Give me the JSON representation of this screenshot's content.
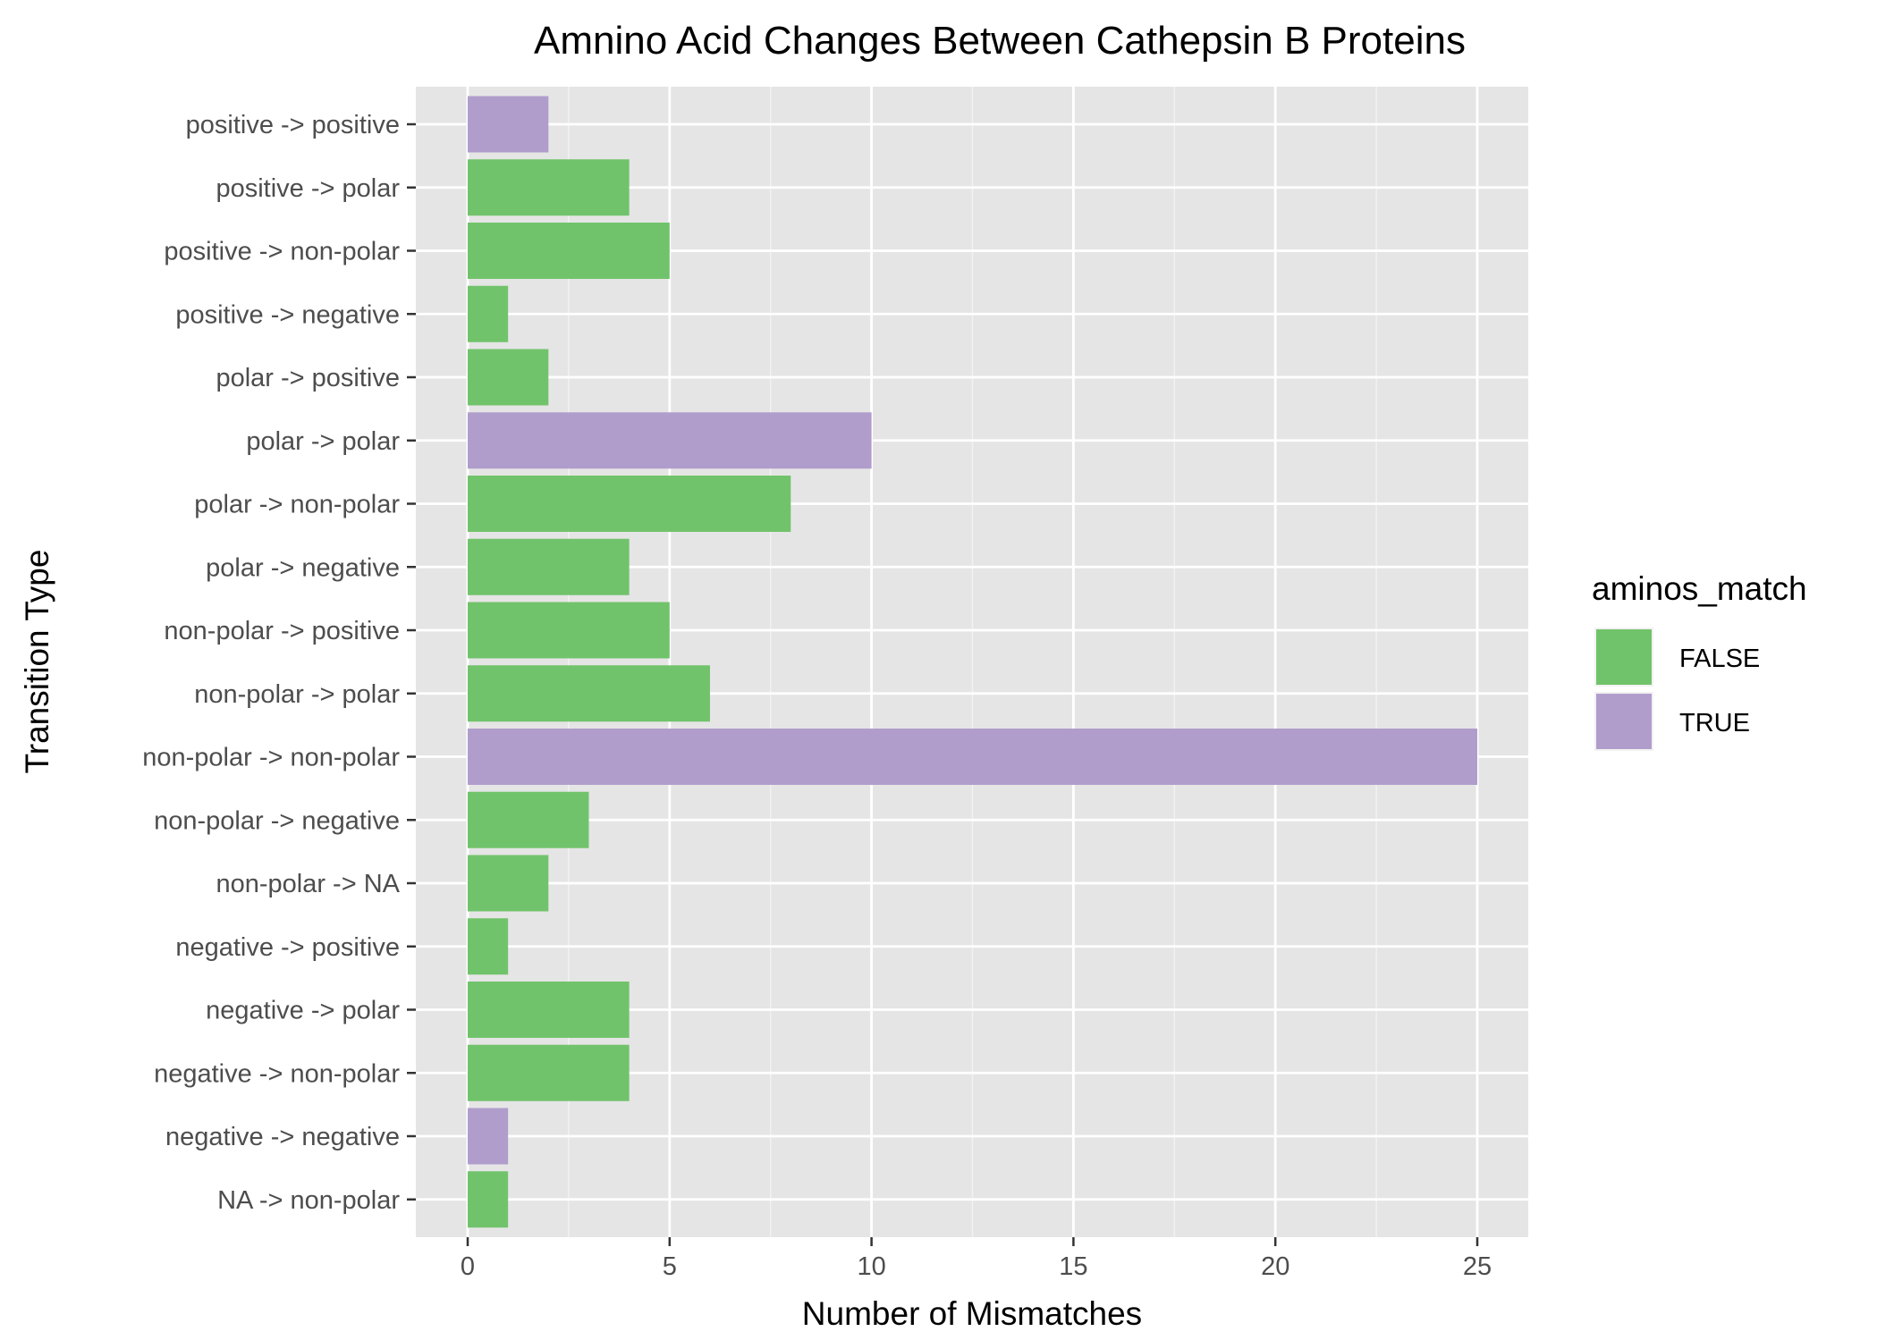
{
  "chart_data": {
    "type": "bar",
    "orientation": "horizontal",
    "title": "Amnino Acid Changes Between Cathepsin B Proteins",
    "xlabel": "Number of Mismatches",
    "ylabel": "Transition Type",
    "xlim": [
      0,
      25
    ],
    "x_ticks": [
      0,
      5,
      10,
      15,
      20,
      25
    ],
    "grid": true,
    "legend": {
      "title": "aminos_match",
      "position": "right",
      "entries": [
        {
          "label": "FALSE",
          "color": "#71C36B"
        },
        {
          "label": "TRUE",
          "color": "#B09DCC"
        }
      ]
    },
    "categories": [
      "positive -> positive",
      "positive -> polar",
      "positive -> non-polar",
      "positive -> negative",
      "polar -> positive",
      "polar -> polar",
      "polar -> non-polar",
      "polar -> negative",
      "non-polar -> positive",
      "non-polar -> polar",
      "non-polar -> non-polar",
      "non-polar -> negative",
      "non-polar -> NA",
      "negative -> positive",
      "negative -> polar",
      "negative -> non-polar",
      "negative -> negative",
      "NA -> non-polar"
    ],
    "values": [
      2,
      4,
      5,
      1,
      2,
      10,
      8,
      4,
      5,
      6,
      25,
      3,
      2,
      1,
      4,
      4,
      1,
      1
    ],
    "aminos_match": [
      "TRUE",
      "FALSE",
      "FALSE",
      "FALSE",
      "FALSE",
      "TRUE",
      "FALSE",
      "FALSE",
      "FALSE",
      "FALSE",
      "TRUE",
      "FALSE",
      "FALSE",
      "FALSE",
      "FALSE",
      "FALSE",
      "TRUE",
      "FALSE"
    ]
  },
  "colors": {
    "panel_background": "#E5E5E5",
    "grid_major": "#FFFFFF",
    "grid_minor": "#F2F2F2",
    "tick_text": "#4D4D4D"
  }
}
